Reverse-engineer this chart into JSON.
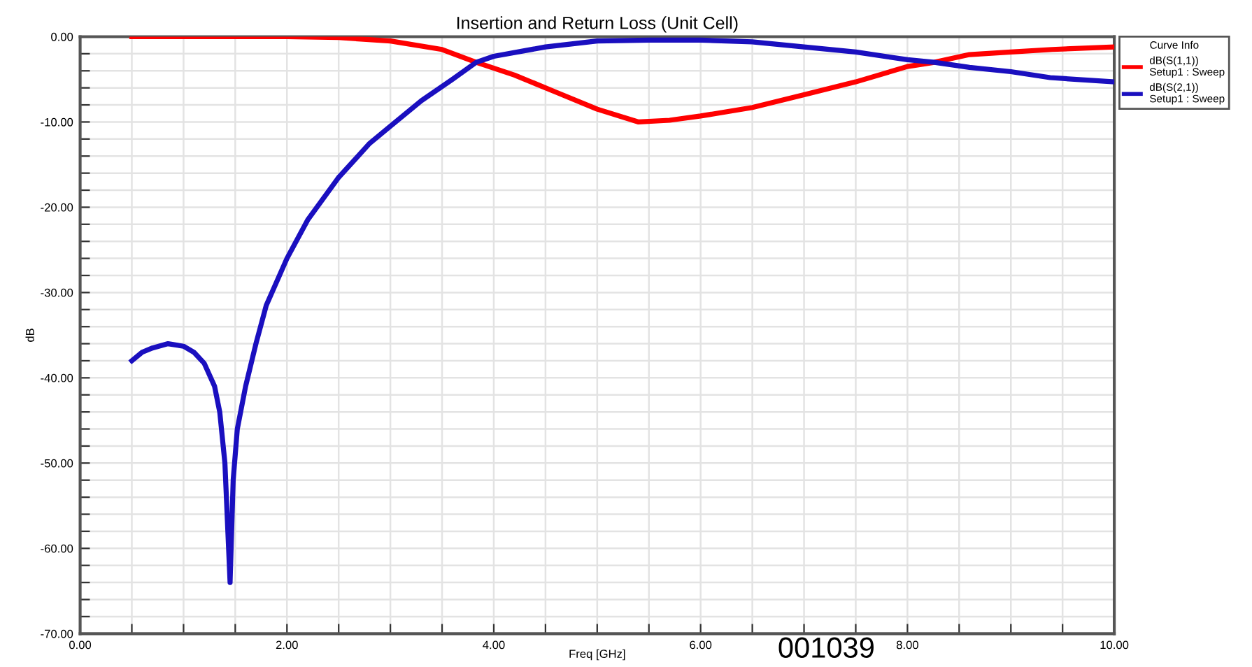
{
  "chart_data": {
    "type": "line",
    "title": "Insertion and Return Loss (Unit Cell)",
    "xlabel": "Freq [GHz]",
    "ylabel": "dB",
    "legend_title": "Curve Info",
    "legend": "top right",
    "grid": true,
    "xlim": [
      0,
      10
    ],
    "ylim": [
      -70,
      0
    ],
    "xticks": [
      {
        "value": 0,
        "label": "0.00"
      },
      {
        "value": 0.5,
        "label": null
      },
      {
        "value": 1,
        "label": null
      },
      {
        "value": 1.5,
        "label": null
      },
      {
        "value": 2,
        "label": "2.00"
      },
      {
        "value": 2.5,
        "label": null
      },
      {
        "value": 3,
        "label": null
      },
      {
        "value": 3.5,
        "label": null
      },
      {
        "value": 4,
        "label": "4.00"
      },
      {
        "value": 4.5,
        "label": null
      },
      {
        "value": 5,
        "label": null
      },
      {
        "value": 5.5,
        "label": null
      },
      {
        "value": 6,
        "label": "6.00"
      },
      {
        "value": 6.5,
        "label": null
      },
      {
        "value": 7,
        "label": null
      },
      {
        "value": 7.5,
        "label": null
      },
      {
        "value": 8,
        "label": "8.00"
      },
      {
        "value": 8.5,
        "label": null
      },
      {
        "value": 9,
        "label": null
      },
      {
        "value": 9.5,
        "label": null
      },
      {
        "value": 10,
        "label": "10.00"
      }
    ],
    "yticks": [
      {
        "value": -70,
        "label": "-70.00"
      },
      {
        "value": -68,
        "label": null
      },
      {
        "value": -66,
        "label": null
      },
      {
        "value": -64,
        "label": null
      },
      {
        "value": -62,
        "label": null
      },
      {
        "value": -60,
        "label": "-60.00"
      },
      {
        "value": -58,
        "label": null
      },
      {
        "value": -56,
        "label": null
      },
      {
        "value": -54,
        "label": null
      },
      {
        "value": -52,
        "label": null
      },
      {
        "value": -50,
        "label": "-50.00"
      },
      {
        "value": -48,
        "label": null
      },
      {
        "value": -46,
        "label": null
      },
      {
        "value": -44,
        "label": null
      },
      {
        "value": -42,
        "label": null
      },
      {
        "value": -40,
        "label": "-40.00"
      },
      {
        "value": -38,
        "label": null
      },
      {
        "value": -36,
        "label": null
      },
      {
        "value": -34,
        "label": null
      },
      {
        "value": -32,
        "label": null
      },
      {
        "value": -30,
        "label": "-30.00"
      },
      {
        "value": -28,
        "label": null
      },
      {
        "value": -26,
        "label": null
      },
      {
        "value": -24,
        "label": null
      },
      {
        "value": -22,
        "label": null
      },
      {
        "value": -20,
        "label": "-20.00"
      },
      {
        "value": -18,
        "label": null
      },
      {
        "value": -16,
        "label": null
      },
      {
        "value": -14,
        "label": null
      },
      {
        "value": -12,
        "label": null
      },
      {
        "value": -10,
        "label": "-10.00"
      },
      {
        "value": -8,
        "label": null
      },
      {
        "value": -6,
        "label": null
      },
      {
        "value": -4,
        "label": null
      },
      {
        "value": -2,
        "label": null
      },
      {
        "value": 0,
        "label": "0.00"
      }
    ],
    "annotations": [
      "001039"
    ],
    "series": [
      {
        "name": "dB(S(1,1))\nSetup1 : Sweep",
        "color": "#ff0000",
        "x": [
          0.5,
          1.0,
          1.5,
          2.0,
          2.5,
          3.0,
          3.5,
          3.83,
          4.2,
          4.6,
          5.0,
          5.4,
          5.7,
          6.0,
          6.5,
          7.0,
          7.5,
          8.0,
          8.26,
          8.6,
          9.0,
          9.4,
          10.0
        ],
        "values": [
          0,
          0,
          0,
          0,
          -0.1,
          -0.5,
          -1.5,
          -3.0,
          -4.5,
          -6.5,
          -8.5,
          -10,
          -9.8,
          -9.3,
          -8.3,
          -6.8,
          -5.3,
          -3.5,
          -3.0,
          -2.1,
          -1.8,
          -1.5,
          -1.2
        ]
      },
      {
        "name": "dB(S(2,1))\nSetup1 : Sweep",
        "color": "#1a0fbf",
        "x": [
          0.5,
          0.6,
          0.7,
          0.85,
          1.0,
          1.1,
          1.2,
          1.3,
          1.35,
          1.4,
          1.45,
          1.48,
          1.52,
          1.6,
          1.7,
          1.8,
          2.0,
          2.2,
          2.5,
          2.8,
          3.0,
          3.3,
          3.6,
          3.83,
          4.0,
          4.5,
          5.0,
          5.5,
          6.0,
          6.5,
          7.0,
          7.5,
          8.0,
          8.26,
          8.6,
          9.0,
          9.38,
          10.0
        ],
        "values": [
          -38,
          -37,
          -36.5,
          -36,
          -36.3,
          -37,
          -38.3,
          -41,
          -44,
          -50,
          -64,
          -52,
          -46,
          -41,
          -36,
          -31.5,
          -26,
          -21.5,
          -16.5,
          -12.5,
          -10.5,
          -7.5,
          -5,
          -3.0,
          -2.3,
          -1.2,
          -0.5,
          -0.4,
          -0.4,
          -0.6,
          -1.2,
          -1.8,
          -2.7,
          -3.0,
          -3.6,
          -4.1,
          -4.8,
          -5.3
        ]
      }
    ]
  }
}
